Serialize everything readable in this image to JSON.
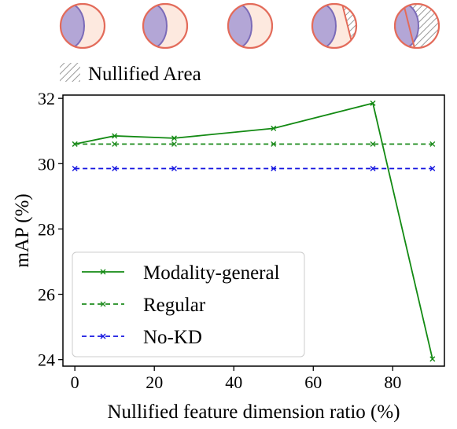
{
  "legend_top": {
    "swatch_label": "Nullified Area"
  },
  "colors": {
    "circle_fill": "#fde9df",
    "circle_stroke": "#e36b5a",
    "inner_fill": "#b3a6d6",
    "inner_stroke": "#7b6bb8",
    "hatch_stroke": "#9a9a9a",
    "modality_general": "#138a13",
    "regular": "#1f8c1f",
    "no_kd": "#1515e0"
  },
  "icons": [
    {
      "name": "nullified-circle-icon-0",
      "nullified_fraction": 0.0
    },
    {
      "name": "nullified-circle-icon-10",
      "nullified_fraction": 0.1
    },
    {
      "name": "nullified-circle-icon-25",
      "nullified_fraction": 0.25
    },
    {
      "name": "nullified-circle-icon-50",
      "nullified_fraction": 0.5
    },
    {
      "name": "nullified-circle-icon-75",
      "nullified_fraction": 0.75
    }
  ],
  "chart_data": {
    "type": "line",
    "xlabel": "Nullified feature dimension ratio (%)",
    "ylabel": "mAP (%)",
    "xlim": [
      -3,
      93
    ],
    "ylim": [
      23.8,
      32.1
    ],
    "xticks": [
      0,
      20,
      40,
      60,
      80
    ],
    "yticks": [
      24,
      26,
      28,
      30,
      32
    ],
    "grid": false,
    "legend_position": "lower-left",
    "x": [
      0,
      10,
      25,
      50,
      75,
      90
    ],
    "series": [
      {
        "name": "Modality-general",
        "values": [
          30.6,
          30.85,
          30.78,
          31.08,
          31.85,
          24.02
        ],
        "style": "solid",
        "marker": "x",
        "color": "#138a13"
      },
      {
        "name": "Regular",
        "values": [
          30.6,
          30.6,
          30.6,
          30.6,
          30.6,
          30.6
        ],
        "style": "dashed",
        "marker": "x",
        "color": "#1f8c1f"
      },
      {
        "name": "No-KD",
        "values": [
          29.85,
          29.85,
          29.85,
          29.85,
          29.85,
          29.85
        ],
        "style": "dashed",
        "marker": "x",
        "color": "#1515e0"
      }
    ]
  }
}
